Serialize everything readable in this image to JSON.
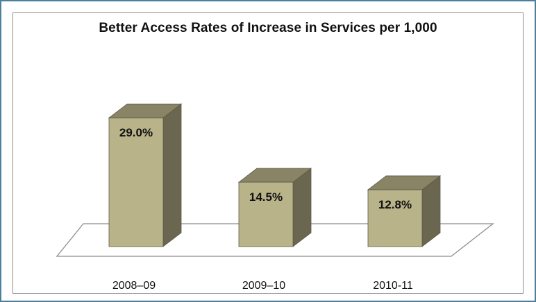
{
  "chart_data": {
    "type": "bar",
    "title": "Better Access Rates of Increase in Services per 1,000",
    "categories": [
      "2008–09",
      "2009–10",
      "2010-11"
    ],
    "values": [
      29.0,
      14.5,
      12.8
    ],
    "value_labels": [
      "29.0%",
      "14.5%",
      "12.8%"
    ],
    "ylim": [
      0,
      35
    ],
    "grid": false,
    "legend": "none",
    "style": "3d-column",
    "colors": {
      "bar_front": "#b9b38a",
      "bar_side": "#6b6650",
      "bar_top": "#8a8466",
      "bar_outline": "#5e5a47",
      "frame_border": "#4a7f9e"
    }
  }
}
